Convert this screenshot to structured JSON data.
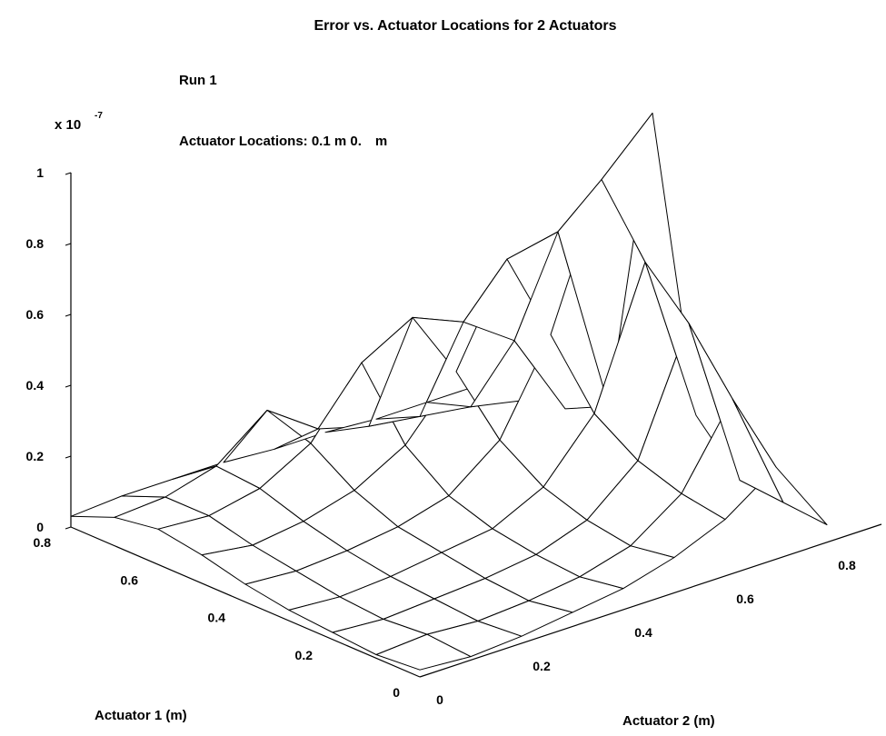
{
  "chart_data": {
    "type": "surface",
    "title": "Error vs. Actuator Locations for 2 Actuators",
    "annotations": {
      "run": "Run 1",
      "locations": "Actuator Locations:  0.1 m  0. m"
    },
    "exponent": {
      "base": "x 10",
      "power": "-7"
    },
    "xlabel": "Actuator 1 (m)",
    "ylabel": "Actuator 2 (m)",
    "x_ticks": [
      "0",
      "0.2",
      "0.4",
      "0.6",
      "0.8"
    ],
    "y_ticks": [
      "0",
      "0.2",
      "0.4",
      "0.6",
      "0.8"
    ],
    "z_ticks": [
      "0",
      "0.2",
      "0.4",
      "0.6",
      "0.8",
      "1"
    ],
    "x_range": [
      0,
      0.8
    ],
    "y_range": [
      0,
      0.8
    ],
    "z_range": [
      0,
      1.0
    ],
    "z_scale_exponent": -7,
    "x": [
      0,
      0.1,
      0.2,
      0.3,
      0.4,
      0.5,
      0.6,
      0.7,
      0.8
    ],
    "y": [
      0,
      0.1,
      0.2,
      0.3,
      0.4,
      0.5,
      0.6,
      0.7,
      0.8
    ],
    "z": [
      [
        0.02,
        0.01,
        0.02,
        0.04,
        0.06,
        0.1,
        0.16,
        0.26,
        0.05
      ],
      [
        0.01,
        0.02,
        0.01,
        0.02,
        0.04,
        0.08,
        0.18,
        0.4,
        0.06
      ],
      [
        0.02,
        0.01,
        0.02,
        0.03,
        0.05,
        0.1,
        0.22,
        0.56,
        0.07
      ],
      [
        0.03,
        0.02,
        0.03,
        0.05,
        0.07,
        0.14,
        0.3,
        0.68,
        0.2
      ],
      [
        0.05,
        0.04,
        0.05,
        0.07,
        0.11,
        0.22,
        0.47,
        0.86,
        1.0
      ],
      [
        0.08,
        0.06,
        0.08,
        0.12,
        0.2,
        0.36,
        0.63,
        0.66,
        0.12
      ],
      [
        0.1,
        0.09,
        0.12,
        0.2,
        0.38,
        0.46,
        0.4,
        0.3,
        0.06
      ],
      [
        0.08,
        0.09,
        0.13,
        0.24,
        0.14,
        0.1,
        0.08,
        0.06,
        0.03
      ],
      [
        0.03,
        0.04,
        0.04,
        0.04,
        0.03,
        0.03,
        0.02,
        0.02,
        0.02
      ]
    ],
    "grid": false
  }
}
